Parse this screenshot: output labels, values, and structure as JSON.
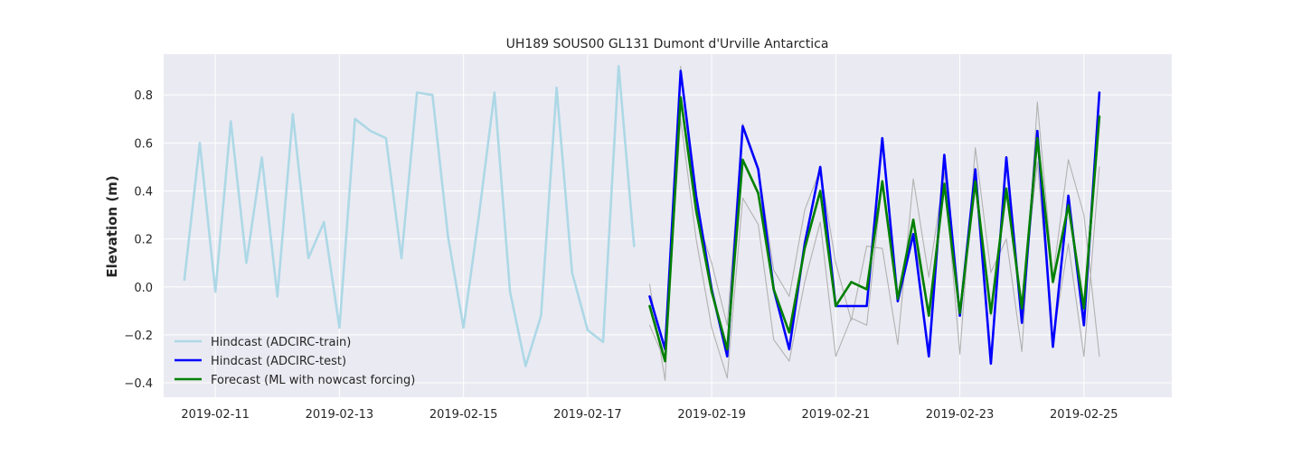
{
  "chart_data": {
    "type": "line",
    "title": "UH189 SOUS00 GL131 Dumont d'Urville Antarctica",
    "xlabel": "",
    "ylabel": "Elevation (m)",
    "x_axis": {
      "type": "date",
      "range": [
        "2019-02-10 04:00",
        "2019-02-26 10:00"
      ],
      "tick_labels": [
        "2019-02-11",
        "2019-02-13",
        "2019-02-15",
        "2019-02-17",
        "2019-02-19",
        "2019-02-21",
        "2019-02-23",
        "2019-02-25"
      ]
    },
    "y_axis": {
      "range": [
        -0.46,
        0.97
      ],
      "tick_values": [
        -0.4,
        -0.2,
        0.0,
        0.2,
        0.4,
        0.6,
        0.8
      ],
      "tick_labels": [
        "−0.4",
        "−0.2",
        "0.0",
        "0.2",
        "0.4",
        "0.6",
        "0.8"
      ]
    },
    "grid": true,
    "background": "#eaeaf2",
    "legend_position": "lower-left",
    "series": [
      {
        "name": "Hindcast (ADCIRC-train)",
        "color": "#add8e6",
        "legend": true,
        "x": [
          "2019-02-10 12:00",
          "2019-02-10 18:00",
          "2019-02-11 00:00",
          "2019-02-11 06:00",
          "2019-02-11 12:00",
          "2019-02-11 18:00",
          "2019-02-12 00:00",
          "2019-02-12 06:00",
          "2019-02-12 12:00",
          "2019-02-12 18:00",
          "2019-02-13 00:00",
          "2019-02-13 06:00",
          "2019-02-13 12:00",
          "2019-02-13 18:00",
          "2019-02-14 00:00",
          "2019-02-14 06:00",
          "2019-02-14 12:00",
          "2019-02-14 18:00",
          "2019-02-15 00:00",
          "2019-02-15 06:00",
          "2019-02-15 12:00",
          "2019-02-15 18:00",
          "2019-02-16 00:00",
          "2019-02-16 06:00",
          "2019-02-16 12:00",
          "2019-02-16 18:00",
          "2019-02-17 00:00",
          "2019-02-17 06:00",
          "2019-02-17 12:00",
          "2019-02-17 18:00"
        ],
        "y": [
          0.03,
          0.6,
          -0.02,
          0.69,
          0.1,
          0.54,
          -0.04,
          0.72,
          0.12,
          0.27,
          -0.17,
          0.7,
          0.65,
          0.62,
          0.12,
          0.81,
          0.8,
          0.21,
          -0.17,
          0.3,
          0.81,
          -0.02,
          -0.33,
          -0.12,
          0.83,
          0.06,
          -0.18,
          -0.23,
          0.92,
          0.17
        ]
      },
      {
        "name": "",
        "color": "#b2b2b2",
        "legend": false,
        "x": [
          "2019-02-18 00:00",
          "2019-02-18 06:00",
          "2019-02-18 12:00",
          "2019-02-18 18:00",
          "2019-02-19 00:00",
          "2019-02-19 06:00",
          "2019-02-19 12:00",
          "2019-02-19 18:00",
          "2019-02-20 00:00",
          "2019-02-20 06:00",
          "2019-02-20 12:00",
          "2019-02-20 18:00",
          "2019-02-21 00:00",
          "2019-02-21 06:00",
          "2019-02-21 12:00",
          "2019-02-21 18:00",
          "2019-02-22 00:00",
          "2019-02-22 06:00",
          "2019-02-22 12:00",
          "2019-02-22 18:00",
          "2019-02-23 00:00",
          "2019-02-23 06:00",
          "2019-02-23 12:00",
          "2019-02-23 18:00",
          "2019-02-24 00:00",
          "2019-02-24 06:00",
          "2019-02-24 12:00",
          "2019-02-24 18:00",
          "2019-02-25 00:00",
          "2019-02-25 06:00"
        ],
        "y": [
          0.01,
          -0.39,
          0.92,
          0.3,
          0.1,
          -0.16,
          0.68,
          0.5,
          0.07,
          -0.04,
          0.32,
          0.49,
          0.1,
          -0.14,
          0.17,
          0.16,
          -0.24,
          0.45,
          0.04,
          0.48,
          -0.28,
          0.58,
          0.06,
          0.2,
          -0.27,
          0.77,
          0.04,
          0.53,
          0.3,
          -0.29
        ]
      },
      {
        "name": "",
        "color": "#b2b2b2",
        "legend": false,
        "x": [
          "2019-02-18 00:00",
          "2019-02-18 06:00",
          "2019-02-18 12:00",
          "2019-02-18 18:00",
          "2019-02-19 00:00",
          "2019-02-19 06:00",
          "2019-02-19 12:00",
          "2019-02-19 18:00",
          "2019-02-20 00:00",
          "2019-02-20 06:00",
          "2019-02-20 12:00",
          "2019-02-20 18:00",
          "2019-02-21 00:00",
          "2019-02-21 06:00",
          "2019-02-21 12:00",
          "2019-02-21 18:00",
          "2019-02-22 00:00",
          "2019-02-22 06:00",
          "2019-02-22 12:00",
          "2019-02-22 18:00",
          "2019-02-23 00:00",
          "2019-02-23 06:00",
          "2019-02-23 12:00",
          "2019-02-23 18:00",
          "2019-02-24 00:00",
          "2019-02-24 06:00",
          "2019-02-24 12:00",
          "2019-02-24 18:00",
          "2019-02-25 00:00",
          "2019-02-25 06:00"
        ],
        "y": [
          -0.16,
          -0.31,
          0.7,
          0.2,
          -0.17,
          -0.38,
          0.37,
          0.26,
          -0.22,
          -0.31,
          0.02,
          0.27,
          -0.29,
          -0.13,
          -0.16,
          0.44,
          -0.06,
          0.22,
          -0.12,
          0.42,
          -0.1,
          0.41,
          -0.12,
          0.4,
          -0.08,
          0.52,
          -0.22,
          0.18,
          -0.29,
          0.5
        ]
      },
      {
        "name": "Hindcast (ADCIRC-test)",
        "color": "#0000ff",
        "legend": true,
        "x": [
          "2019-02-18 00:00",
          "2019-02-18 06:00",
          "2019-02-18 12:00",
          "2019-02-18 18:00",
          "2019-02-19 00:00",
          "2019-02-19 06:00",
          "2019-02-19 12:00",
          "2019-02-19 18:00",
          "2019-02-20 00:00",
          "2019-02-20 06:00",
          "2019-02-20 12:00",
          "2019-02-20 18:00",
          "2019-02-21 00:00",
          "2019-02-21 06:00",
          "2019-02-21 12:00",
          "2019-02-21 18:00",
          "2019-02-22 00:00",
          "2019-02-22 06:00",
          "2019-02-22 12:00",
          "2019-02-22 18:00",
          "2019-02-23 00:00",
          "2019-02-23 06:00",
          "2019-02-23 12:00",
          "2019-02-23 18:00",
          "2019-02-24 00:00",
          "2019-02-24 06:00",
          "2019-02-24 12:00",
          "2019-02-24 18:00",
          "2019-02-25 00:00",
          "2019-02-25 06:00"
        ],
        "y": [
          -0.04,
          -0.26,
          0.9,
          0.38,
          -0.01,
          -0.29,
          0.67,
          0.49,
          -0.01,
          -0.26,
          0.18,
          0.5,
          -0.08,
          -0.08,
          -0.08,
          0.62,
          -0.06,
          0.22,
          -0.29,
          0.55,
          -0.12,
          0.49,
          -0.32,
          0.54,
          -0.15,
          0.65,
          -0.25,
          0.38,
          -0.16,
          0.81
        ]
      },
      {
        "name": "Forecast (ML with nowcast forcing)",
        "color": "#008000",
        "legend": true,
        "x": [
          "2019-02-18 00:00",
          "2019-02-18 06:00",
          "2019-02-18 12:00",
          "2019-02-18 18:00",
          "2019-02-19 00:00",
          "2019-02-19 06:00",
          "2019-02-19 12:00",
          "2019-02-19 18:00",
          "2019-02-20 00:00",
          "2019-02-20 06:00",
          "2019-02-20 12:00",
          "2019-02-20 18:00",
          "2019-02-21 00:00",
          "2019-02-21 06:00",
          "2019-02-21 12:00",
          "2019-02-21 18:00",
          "2019-02-22 00:00",
          "2019-02-22 06:00",
          "2019-02-22 12:00",
          "2019-02-22 18:00",
          "2019-02-23 00:00",
          "2019-02-23 06:00",
          "2019-02-23 12:00",
          "2019-02-23 18:00",
          "2019-02-24 00:00",
          "2019-02-24 06:00",
          "2019-02-24 12:00",
          "2019-02-24 18:00",
          "2019-02-25 00:00",
          "2019-02-25 06:00"
        ],
        "y": [
          -0.08,
          -0.31,
          0.79,
          0.32,
          -0.02,
          -0.26,
          0.53,
          0.39,
          -0.01,
          -0.19,
          0.16,
          0.4,
          -0.08,
          0.02,
          -0.01,
          0.44,
          -0.05,
          0.28,
          -0.12,
          0.43,
          -0.11,
          0.44,
          -0.11,
          0.41,
          -0.09,
          0.62,
          0.02,
          0.34,
          -0.09,
          0.71
        ]
      }
    ]
  }
}
